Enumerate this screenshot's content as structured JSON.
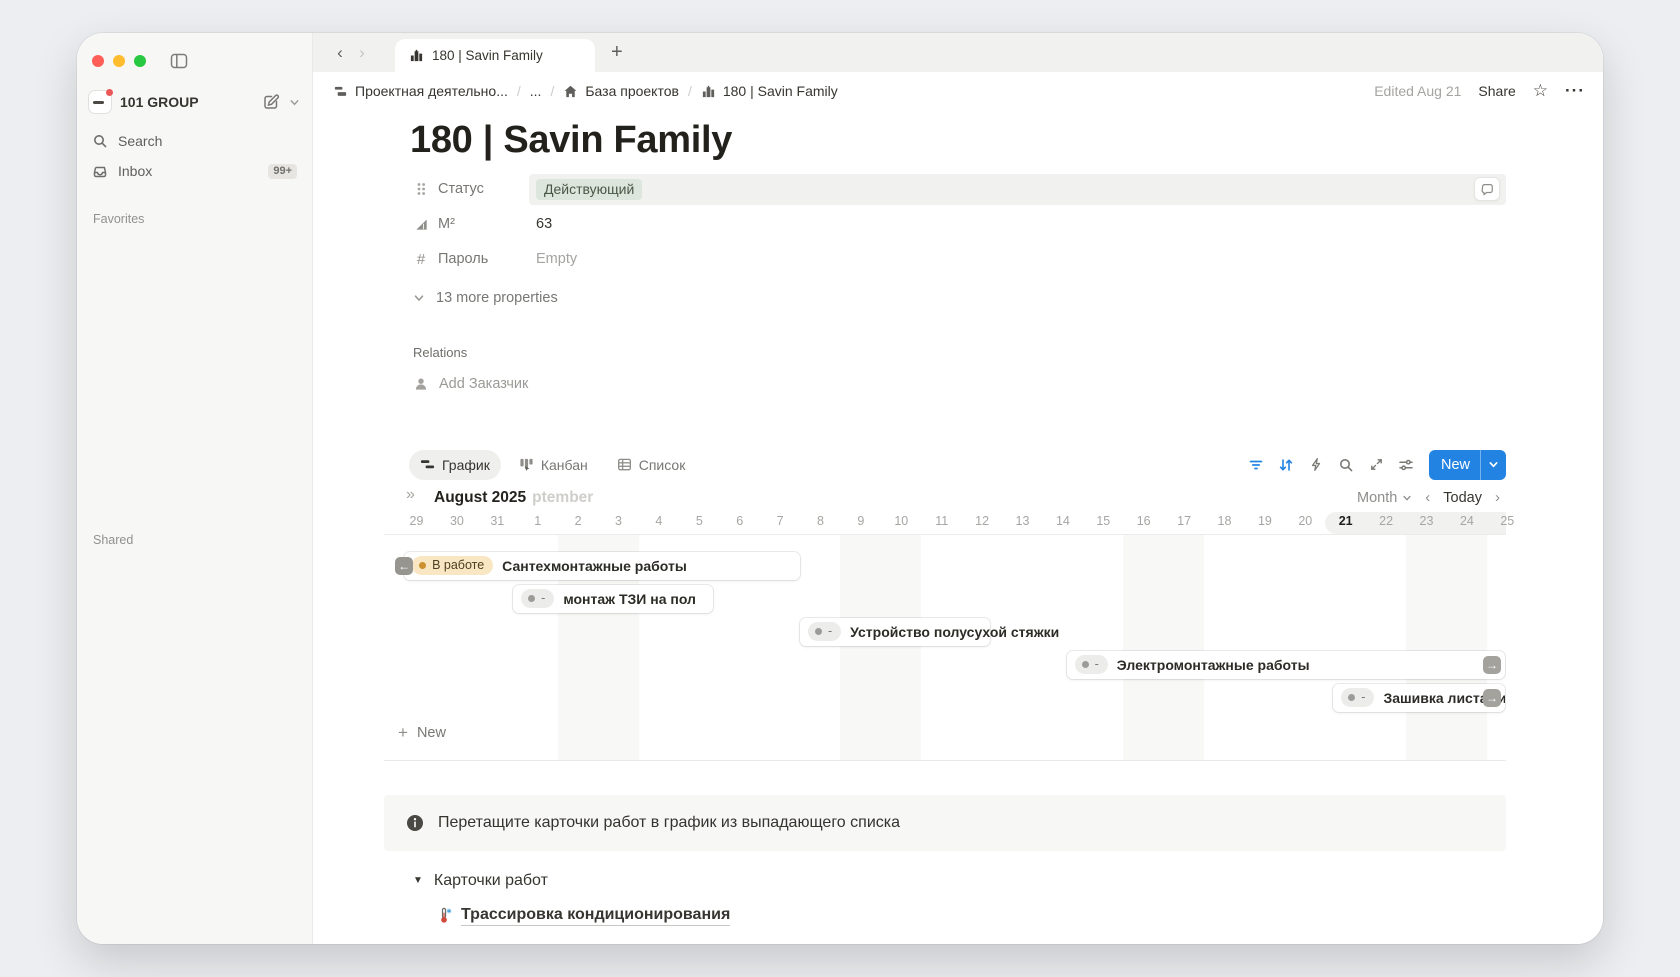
{
  "sidebar": {
    "workspace": {
      "name": "101 GROUP"
    },
    "items": [
      {
        "label": "Search",
        "icon": "search-icon"
      },
      {
        "label": "Inbox",
        "icon": "inbox-icon",
        "badge": "99+"
      }
    ],
    "sections": [
      {
        "label": "Favorites"
      },
      {
        "label": "Shared"
      }
    ]
  },
  "tabbar": {
    "active_tab": "180 | Savin Family",
    "new_tab": "+"
  },
  "breadcrumb": {
    "items": [
      {
        "label": "Проектная деятельно...",
        "icon": "org-icon"
      },
      {
        "label": "...",
        "icon": null
      },
      {
        "label": "База проектов",
        "icon": "home-icon"
      },
      {
        "label": "180 | Savin Family",
        "icon": "building-icon"
      }
    ],
    "edited": "Edited Aug 21",
    "share": "Share"
  },
  "page": {
    "title": "180 | Savin Family"
  },
  "properties": {
    "rows": [
      {
        "name": "Статус",
        "value": "Действующий",
        "kind": "status"
      },
      {
        "name": "М²",
        "value": "63",
        "kind": "number"
      },
      {
        "name": "Пароль",
        "value": "Empty",
        "kind": "empty"
      }
    ],
    "more": "13 more properties"
  },
  "relations": {
    "heading": "Relations",
    "add_label": "Add Заказчик"
  },
  "view_tabs": [
    {
      "label": "График",
      "active": true
    },
    {
      "label": "Канбан",
      "active": false
    },
    {
      "label": "Список",
      "active": false
    }
  ],
  "toolbar": {
    "new_label": "New"
  },
  "timeline": {
    "month_label": "August 2025",
    "next_month_partial": "ptember",
    "scale": "Month",
    "today_label": "Today",
    "dates": [
      "29",
      "30",
      "31",
      "1",
      "2",
      "3",
      "4",
      "5",
      "6",
      "7",
      "8",
      "9",
      "10",
      "11",
      "12",
      "13",
      "14",
      "15",
      "16",
      "17",
      "18",
      "19",
      "20",
      "21",
      "22",
      "23",
      "24",
      "25"
    ],
    "today_date": "21",
    "today_index": 23,
    "weekend_start_indices": [
      4,
      11,
      18,
      25
    ],
    "cards": [
      {
        "title": "Сантехмонтажные работы",
        "tag": {
          "label": "В работе",
          "color": "yellow"
        },
        "start": 0.2,
        "end": 10.0,
        "row": 0,
        "clipped_left": true,
        "clipped_right": false
      },
      {
        "title": "монтаж ТЗИ на пол",
        "tag": {
          "label": "-",
          "color": "gray"
        },
        "start": 2.9,
        "end": 7.85,
        "row": 1,
        "clipped_left": false,
        "clipped_right": false
      },
      {
        "title": "Устройство полусухой стяжки",
        "tag": {
          "label": "-",
          "color": "gray"
        },
        "start": 10.0,
        "end": 14.7,
        "row": 2,
        "clipped_left": false,
        "clipped_right": false
      },
      {
        "title": "Электромонтажные работы",
        "tag": {
          "label": "-",
          "color": "gray"
        },
        "start": 16.6,
        "end": 27.45,
        "row": 3,
        "clipped_left": false,
        "clipped_right": true
      },
      {
        "title": "Зашивка листами",
        "tag": {
          "label": "-",
          "color": "gray"
        },
        "start": 23.2,
        "end": 27.45,
        "row": 4,
        "clipped_left": false,
        "clipped_right": true,
        "clip_overflow": true
      }
    ],
    "new_label": "New"
  },
  "banner": {
    "text": "Перетащите карточки работ в график из выпадающего списка"
  },
  "cards_section": {
    "toggle_label": "Карточки работ",
    "items": [
      {
        "label": "Трассировка кондиционирования",
        "icon": "thermometer-icon"
      }
    ]
  },
  "colors": {
    "accent": "#2383e2",
    "status_tag_bg": "#dde6dc",
    "status_tag_text": "#485747",
    "yellow_tag_bg": "#f8e7c2",
    "yellow_dot": "#cb912f"
  }
}
